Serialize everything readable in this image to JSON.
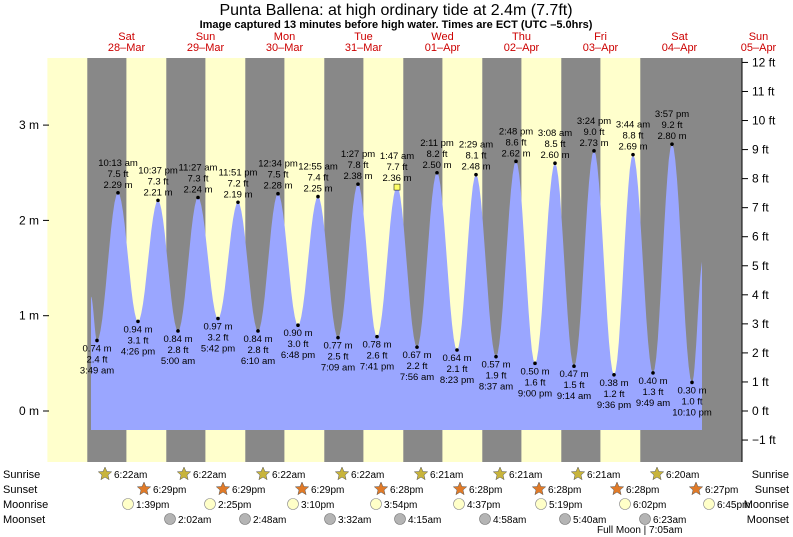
{
  "title": "Punta Ballena: at high  ordinary tide at 2.4m (7.7ft)",
  "subtitle": "Image captured 13 minutes before high water. Times are ECT (UTC –5.0hrs)",
  "days": [
    {
      "dow": "Sat",
      "date": "28–Mar"
    },
    {
      "dow": "Sun",
      "date": "29–Mar"
    },
    {
      "dow": "Mon",
      "date": "30–Mar"
    },
    {
      "dow": "Tue",
      "date": "31–Mar"
    },
    {
      "dow": "Wed",
      "date": "01–Apr"
    },
    {
      "dow": "Thu",
      "date": "02–Apr"
    },
    {
      "dow": "Fri",
      "date": "03–Apr"
    },
    {
      "dow": "Sat",
      "date": "04–Apr"
    },
    {
      "dow": "Sun",
      "date": "05–Apr"
    }
  ],
  "colors": {
    "night": "#888888",
    "day": "#ffffcc",
    "tide": "#9aa6ff",
    "day_label": "#cc0000",
    "sun_icon": "#c8b43c",
    "sunset_icon": "#e07a28",
    "moonrise_icon": "#ffffc8",
    "moonset_icon": "#b4b4b4"
  },
  "chart_data": {
    "type": "area",
    "y_left_ticks": [
      "0 m",
      "1 m",
      "2 m",
      "3 m"
    ],
    "y_right_ticks": [
      "−1 ft",
      "0 ft",
      "1 ft",
      "2 ft",
      "3 ft",
      "4 ft",
      "5 ft",
      "6 ft",
      "7 ft",
      "8 ft",
      "9 ft",
      "10 ft",
      "11 ft",
      "12 ft"
    ],
    "ylim_m": [
      -0.5,
      3.7
    ],
    "tides": [
      {
        "kind": "low",
        "time": "3:49 am",
        "ft": "2.4 ft",
        "m": "0.74 m",
        "value": 0.74
      },
      {
        "kind": "high",
        "time": "10:13 am",
        "ft": "7.5 ft",
        "m": "2.29 m",
        "value": 2.29
      },
      {
        "kind": "low",
        "time": "4:26 pm",
        "ft": "3.1 ft",
        "m": "0.94 m",
        "value": 0.94
      },
      {
        "kind": "high",
        "time": "10:37 pm",
        "ft": "7.3 ft",
        "m": "2.21 m",
        "value": 2.21
      },
      {
        "kind": "low",
        "time": "5:00 am",
        "ft": "2.8 ft",
        "m": "0.84 m",
        "value": 0.84
      },
      {
        "kind": "high",
        "time": "11:27 am",
        "ft": "7.3 ft",
        "m": "2.24 m",
        "value": 2.24
      },
      {
        "kind": "low",
        "time": "5:42 pm",
        "ft": "3.2 ft",
        "m": "0.97 m",
        "value": 0.97
      },
      {
        "kind": "high",
        "time": "11:51 pm",
        "ft": "7.2 ft",
        "m": "2.19 m",
        "value": 2.19
      },
      {
        "kind": "low",
        "time": "6:10 am",
        "ft": "2.8 ft",
        "m": "0.84 m",
        "value": 0.84
      },
      {
        "kind": "high",
        "time": "12:34 pm",
        "ft": "7.5 ft",
        "m": "2.28 m",
        "value": 2.28
      },
      {
        "kind": "low",
        "time": "6:48 pm",
        "ft": "3.0 ft",
        "m": "0.90 m",
        "value": 0.9
      },
      {
        "kind": "high",
        "time": "12:55 am",
        "ft": "7.4 ft",
        "m": "2.25 m",
        "value": 2.25
      },
      {
        "kind": "low",
        "time": "7:09 am",
        "ft": "2.5 ft",
        "m": "0.77 m",
        "value": 0.77
      },
      {
        "kind": "high",
        "time": "1:27 pm",
        "ft": "7.8 ft",
        "m": "2.38 m",
        "value": 2.38
      },
      {
        "kind": "low",
        "time": "7:41 pm",
        "ft": "2.6 ft",
        "m": "0.78 m",
        "value": 0.78
      },
      {
        "kind": "high",
        "time": "1:47 am",
        "ft": "7.7 ft",
        "m": "2.36 m",
        "value": 2.36
      },
      {
        "kind": "low",
        "time": "7:56 am",
        "ft": "2.2 ft",
        "m": "0.67 m",
        "value": 0.67
      },
      {
        "kind": "high",
        "time": "2:11 pm",
        "ft": "8.2 ft",
        "m": "2.50 m",
        "value": 2.5
      },
      {
        "kind": "low",
        "time": "8:23 pm",
        "ft": "2.1 ft",
        "m": "0.64 m",
        "value": 0.64
      },
      {
        "kind": "high",
        "time": "2:29 am",
        "ft": "8.1 ft",
        "m": "2.48 m",
        "value": 2.48
      },
      {
        "kind": "low",
        "time": "8:37 am",
        "ft": "1.9 ft",
        "m": "0.57 m",
        "value": 0.57
      },
      {
        "kind": "high",
        "time": "2:48 pm",
        "ft": "8.6 ft",
        "m": "2.62 m",
        "value": 2.62
      },
      {
        "kind": "low",
        "time": "9:00 pm",
        "ft": "1.6 ft",
        "m": "0.50 m",
        "value": 0.5
      },
      {
        "kind": "high",
        "time": "3:08 am",
        "ft": "8.5 ft",
        "m": "2.60 m",
        "value": 2.6
      },
      {
        "kind": "low",
        "time": "9:14 am",
        "ft": "1.5 ft",
        "m": "0.47 m",
        "value": 0.47
      },
      {
        "kind": "high",
        "time": "3:24 pm",
        "ft": "9.0 ft",
        "m": "2.73 m",
        "value": 2.73
      },
      {
        "kind": "low",
        "time": "9:36 pm",
        "ft": "1.2 ft",
        "m": "0.38 m",
        "value": 0.38
      },
      {
        "kind": "high",
        "time": "3:44 am",
        "ft": "8.8 ft",
        "m": "2.69 m",
        "value": 2.69
      },
      {
        "kind": "low",
        "time": "9:49 am",
        "ft": "1.3 ft",
        "m": "0.40 m",
        "value": 0.4
      },
      {
        "kind": "high",
        "time": "3:57 pm",
        "ft": "9.2 ft",
        "m": "2.80 m",
        "value": 2.8
      },
      {
        "kind": "low",
        "time": "10:10 pm",
        "ft": "1.0 ft",
        "m": "0.30 m",
        "value": 0.3
      }
    ]
  },
  "events": {
    "row_labels": [
      "Sunrise",
      "Sunset",
      "Moonrise",
      "Moonset"
    ],
    "sunrise": [
      "6:22am",
      "6:22am",
      "6:22am",
      "6:22am",
      "6:21am",
      "6:21am",
      "6:21am",
      "6:20am"
    ],
    "sunset": [
      "6:29pm",
      "6:29pm",
      "6:29pm",
      "6:28pm",
      "6:28pm",
      "6:28pm",
      "6:28pm",
      "6:27pm"
    ],
    "moonrise": [
      "1:39pm",
      "2:25pm",
      "3:10pm",
      "3:54pm",
      "4:37pm",
      "5:19pm",
      "6:02pm",
      "6:45pm"
    ],
    "moonset": [
      "2:02am",
      "2:48am",
      "3:32am",
      "4:15am",
      "4:58am",
      "5:40am",
      "6:23am"
    ],
    "footer": "Full Moon | 7:05am"
  }
}
